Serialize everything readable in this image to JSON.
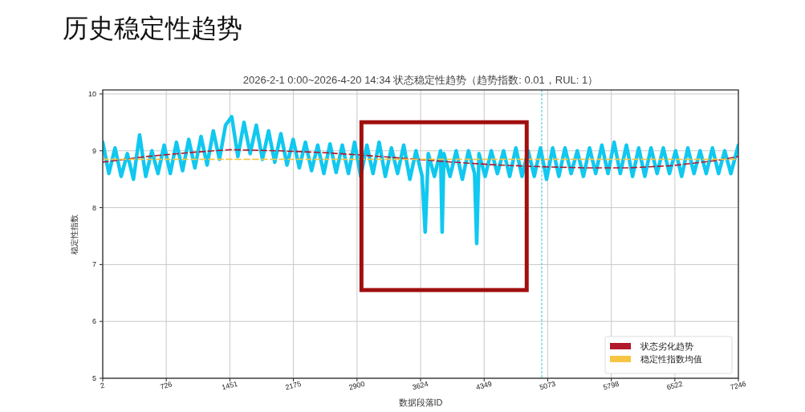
{
  "chart_data": {
    "type": "line",
    "title": "历史稳定性趋势",
    "subtitle": "2026-2-1 0:00~2026-4-20 14:34 状态稳定性趋势（趋势指数: 0.01，RUL: 1）",
    "xlabel": "数据段落ID",
    "ylabel": "稳定性指数",
    "xlim": [
      2,
      7246
    ],
    "xticks": [
      2,
      726,
      1451,
      2175,
      2900,
      3624,
      4349,
      5073,
      5798,
      6522,
      7246
    ],
    "ylim": [
      5,
      10.07
    ],
    "yticks": [
      5,
      6,
      7,
      8,
      9,
      10
    ],
    "grid": true,
    "legend": "bottom right",
    "marker": "none",
    "ref_lines": [
      {
        "axis": "x",
        "value": 5005,
        "color": "#2ec4d6",
        "line_style": "dashed"
      }
    ],
    "series": [
      {
        "color": "#10c8f0",
        "line_style": "solid",
        "x": [
          2,
          72,
          142,
          212,
          282,
          352,
          422,
          492,
          562,
          632,
          702,
          772,
          842,
          912,
          982,
          1052,
          1122,
          1192,
          1262,
          1332,
          1402,
          1472,
          1542,
          1612,
          1682,
          1752,
          1822,
          1892,
          1962,
          2032,
          2102,
          2172,
          2242,
          2312,
          2382,
          2452,
          2522,
          2592,
          2662,
          2732,
          2802,
          2872,
          2942,
          3012,
          3082,
          3152,
          3222,
          3292,
          3362,
          3432,
          3502,
          3572,
          3642,
          3677,
          3712,
          3782,
          3852,
          3870,
          3890,
          3960,
          4030,
          4100,
          4170,
          4240,
          4264,
          4290,
          4360,
          4430,
          4500,
          4570,
          4640,
          4710,
          4780,
          4850,
          4920,
          4990,
          5060,
          5130,
          5200,
          5270,
          5340,
          5410,
          5480,
          5550,
          5620,
          5690,
          5760,
          5830,
          5900,
          5970,
          6040,
          6110,
          6180,
          6250,
          6320,
          6390,
          6460,
          6530,
          6600,
          6670,
          6740,
          6810,
          6880,
          6950,
          7020,
          7090,
          7160,
          7246
        ],
        "values": [
          9.15,
          8.6,
          9.05,
          8.55,
          8.95,
          8.5,
          9.28,
          8.55,
          9.0,
          8.6,
          9.1,
          8.6,
          9.15,
          8.65,
          9.2,
          8.7,
          9.25,
          8.75,
          9.35,
          8.85,
          9.45,
          9.6,
          8.9,
          9.5,
          8.95,
          9.45,
          8.85,
          9.35,
          8.8,
          9.3,
          8.75,
          9.2,
          8.7,
          9.15,
          8.65,
          9.1,
          8.6,
          9.12,
          8.62,
          9.1,
          8.6,
          9.15,
          8.55,
          9.1,
          8.6,
          9.15,
          8.55,
          9.05,
          8.6,
          9.1,
          8.5,
          9.0,
          8.55,
          7.57,
          8.95,
          8.55,
          9.0,
          7.57,
          8.95,
          8.55,
          9.0,
          8.5,
          9.0,
          8.6,
          7.37,
          8.95,
          8.55,
          9.0,
          8.6,
          9.0,
          8.55,
          9.05,
          8.55,
          9.0,
          8.55,
          9.05,
          8.5,
          9.05,
          8.55,
          9.05,
          8.6,
          9.0,
          8.55,
          9.05,
          8.6,
          9.1,
          8.6,
          9.15,
          8.6,
          9.1,
          8.55,
          9.05,
          8.55,
          9.05,
          8.6,
          9.05,
          8.6,
          9.0,
          8.55,
          9.05,
          8.6,
          9.0,
          8.6,
          9.05,
          8.6,
          9.0,
          8.6,
          9.1
        ]
      },
      {
        "name": "状态劣化趋势",
        "color": "#b2182b",
        "line_style": "dashed",
        "x": [
          2,
          500,
          1000,
          1451,
          2000,
          2500,
          2900,
          3500,
          4000,
          4500,
          5000,
          5500,
          6000,
          6500,
          7000,
          7246
        ],
        "values": [
          8.8,
          8.9,
          8.97,
          9.02,
          9.0,
          8.97,
          8.93,
          8.86,
          8.8,
          8.75,
          8.72,
          8.7,
          8.7,
          8.74,
          8.83,
          8.9
        ]
      },
      {
        "name": "稳定性指数均值",
        "color": "#f7c443",
        "line_style": "dashed",
        "x": [
          2,
          7246
        ],
        "values": [
          8.85,
          8.85
        ]
      }
    ]
  }
}
